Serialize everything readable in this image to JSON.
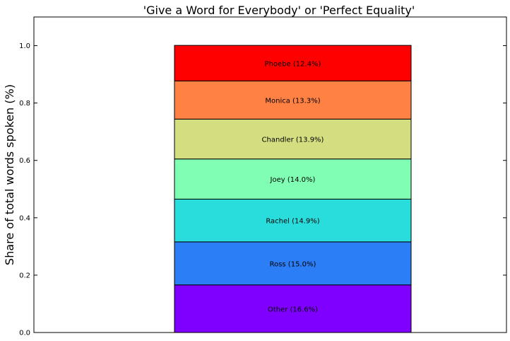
{
  "chart_data": {
    "type": "bar",
    "stacked": true,
    "title": "'Give a Word for Everybody' or 'Perfect Equality'",
    "xlabel": "",
    "ylabel": "Share of total words spoken (%)",
    "ylim": [
      0,
      1.1
    ],
    "yticks": [
      "0.0",
      "0.2",
      "0.4",
      "0.6",
      "0.8",
      "1.0"
    ],
    "grid": false,
    "series": [
      {
        "label": "Other (16.6%)",
        "value": 0.166,
        "color": "#7f00ff"
      },
      {
        "label": "Ross (15.0%)",
        "value": 0.15,
        "color": "#2c7ef7"
      },
      {
        "label": "Rachel (14.9%)",
        "value": 0.149,
        "color": "#2adddd"
      },
      {
        "label": "Joey (14.0%)",
        "value": 0.14,
        "color": "#80ffb4"
      },
      {
        "label": "Chandler (13.9%)",
        "value": 0.139,
        "color": "#d4dd80"
      },
      {
        "label": "Monica (13.3%)",
        "value": 0.133,
        "color": "#ff8144"
      },
      {
        "label": "Phoebe (12.4%)",
        "value": 0.124,
        "color": "#ff0000"
      }
    ]
  }
}
